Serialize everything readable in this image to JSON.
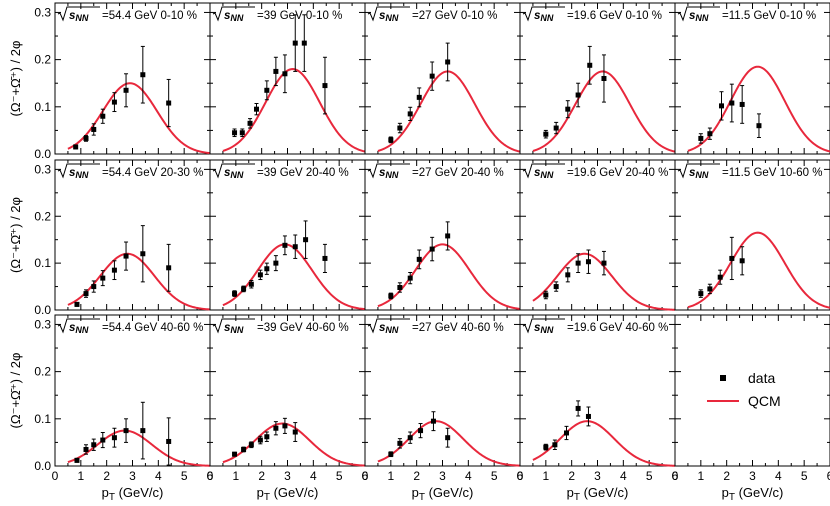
{
  "chart_data": {
    "type": "scatter",
    "title": "",
    "xlabel": "p_T (GeV/c)",
    "xlim": [
      0,
      6
    ],
    "x_ticks": [
      "0",
      "1",
      "2",
      "3",
      "4",
      "5",
      "6"
    ],
    "y_ticks": [
      "0.0",
      "0.1",
      "0.2",
      "0.3"
    ],
    "ylim": [
      0,
      0.32
    ],
    "row_ylabels": [
      "(Ω⁻+Ω̄⁺) / 2φ",
      "(Ω⁻+Ω̄⁺) / 2φ",
      "(Ω⁻+Ω̄⁺) / 2φ"
    ],
    "legend": {
      "position": "bottom-right",
      "entries": [
        "data",
        "QCM"
      ]
    },
    "qcm_color": "#e8283c",
    "data_color": "#000000",
    "panels": [
      {
        "energy": "54.4 GeV",
        "centrality": "0-10 %",
        "qcm_peak": 0.15,
        "qcm_mu": 2.9,
        "data": [
          [
            0.8,
            0.015,
            0.004
          ],
          [
            1.2,
            0.033,
            0.006
          ],
          [
            1.5,
            0.052,
            0.012
          ],
          [
            1.85,
            0.08,
            0.015
          ],
          [
            2.3,
            0.11,
            0.02
          ],
          [
            2.75,
            0.135,
            0.035
          ],
          [
            3.4,
            0.168,
            0.06
          ],
          [
            4.4,
            0.108,
            0.05
          ]
        ]
      },
      {
        "energy": "39 GeV",
        "centrality": "0-10 %",
        "qcm_peak": 0.18,
        "qcm_mu": 3.2,
        "data": [
          [
            0.95,
            0.045,
            0.008
          ],
          [
            1.25,
            0.045,
            0.008
          ],
          [
            1.55,
            0.065,
            0.01
          ],
          [
            1.8,
            0.095,
            0.012
          ],
          [
            2.2,
            0.135,
            0.02
          ],
          [
            2.55,
            0.175,
            0.03
          ],
          [
            2.9,
            0.17,
            0.04
          ],
          [
            3.3,
            0.235,
            0.06
          ],
          [
            3.65,
            0.235,
            0.06
          ],
          [
            4.45,
            0.145,
            0.06
          ]
        ]
      },
      {
        "energy": "27 GeV",
        "centrality": "0-10 %",
        "qcm_peak": 0.175,
        "qcm_mu": 3.2,
        "data": [
          [
            1.0,
            0.03,
            0.006
          ],
          [
            1.35,
            0.055,
            0.01
          ],
          [
            1.75,
            0.085,
            0.014
          ],
          [
            2.1,
            0.12,
            0.02
          ],
          [
            2.6,
            0.165,
            0.03
          ],
          [
            3.2,
            0.195,
            0.04
          ]
        ]
      },
      {
        "energy": "19.6 GeV",
        "centrality": "0-10 %",
        "qcm_peak": 0.175,
        "qcm_mu": 3.2,
        "data": [
          [
            1.0,
            0.042,
            0.008
          ],
          [
            1.4,
            0.055,
            0.012
          ],
          [
            1.85,
            0.095,
            0.018
          ],
          [
            2.25,
            0.125,
            0.025
          ],
          [
            2.7,
            0.188,
            0.04
          ],
          [
            3.25,
            0.16,
            0.05
          ]
        ]
      },
      {
        "energy": "11.5 GeV",
        "centrality": "0-10 %",
        "qcm_peak": 0.185,
        "qcm_mu": 3.2,
        "data": [
          [
            1.0,
            0.033,
            0.01
          ],
          [
            1.35,
            0.043,
            0.012
          ],
          [
            1.8,
            0.102,
            0.03
          ],
          [
            2.2,
            0.108,
            0.04
          ],
          [
            2.6,
            0.105,
            0.04
          ],
          [
            3.25,
            0.06,
            0.025
          ]
        ]
      },
      {
        "energy": "54.4 GeV",
        "centrality": "20-30 %",
        "qcm_peak": 0.12,
        "qcm_mu": 2.8,
        "data": [
          [
            0.85,
            0.012,
            0.004
          ],
          [
            1.2,
            0.035,
            0.008
          ],
          [
            1.5,
            0.05,
            0.012
          ],
          [
            1.85,
            0.068,
            0.016
          ],
          [
            2.3,
            0.085,
            0.02
          ],
          [
            2.75,
            0.115,
            0.03
          ],
          [
            3.4,
            0.12,
            0.06
          ],
          [
            4.4,
            0.09,
            0.05
          ]
        ]
      },
      {
        "energy": "39 GeV",
        "centrality": "20-40 %",
        "qcm_peak": 0.14,
        "qcm_mu": 2.9,
        "data": [
          [
            0.95,
            0.035,
            0.006
          ],
          [
            1.3,
            0.045,
            0.006
          ],
          [
            1.6,
            0.055,
            0.008
          ],
          [
            1.95,
            0.075,
            0.01
          ],
          [
            2.2,
            0.088,
            0.012
          ],
          [
            2.55,
            0.1,
            0.016
          ],
          [
            2.9,
            0.138,
            0.02
          ],
          [
            3.3,
            0.135,
            0.025
          ],
          [
            3.7,
            0.15,
            0.04
          ],
          [
            4.45,
            0.11,
            0.03
          ]
        ]
      },
      {
        "energy": "27 GeV",
        "centrality": "20-40 %",
        "qcm_peak": 0.14,
        "qcm_mu": 3.0,
        "data": [
          [
            1.0,
            0.03,
            0.006
          ],
          [
            1.35,
            0.048,
            0.01
          ],
          [
            1.75,
            0.068,
            0.012
          ],
          [
            2.1,
            0.108,
            0.02
          ],
          [
            2.6,
            0.13,
            0.025
          ],
          [
            3.2,
            0.158,
            0.03
          ]
        ]
      },
      {
        "energy": "19.6 GeV",
        "centrality": "20-40 %",
        "qcm_peak": 0.12,
        "qcm_mu": 2.5,
        "data": [
          [
            1.0,
            0.032,
            0.008
          ],
          [
            1.4,
            0.05,
            0.01
          ],
          [
            1.85,
            0.075,
            0.015
          ],
          [
            2.25,
            0.1,
            0.02
          ],
          [
            2.65,
            0.103,
            0.025
          ],
          [
            3.25,
            0.1,
            0.025
          ]
        ]
      },
      {
        "energy": "11.5 GeV",
        "centrality": "10-60 %",
        "qcm_peak": 0.165,
        "qcm_mu": 3.2,
        "data": [
          [
            1.0,
            0.035,
            0.008
          ],
          [
            1.35,
            0.045,
            0.01
          ],
          [
            1.75,
            0.07,
            0.015
          ],
          [
            2.2,
            0.11,
            0.045
          ],
          [
            2.6,
            0.105,
            0.03
          ]
        ]
      },
      {
        "energy": "54.4 GeV",
        "centrality": "40-60 %",
        "qcm_peak": 0.075,
        "qcm_mu": 2.7,
        "data": [
          [
            0.85,
            0.012,
            0.004
          ],
          [
            1.2,
            0.035,
            0.01
          ],
          [
            1.5,
            0.045,
            0.012
          ],
          [
            1.85,
            0.055,
            0.016
          ],
          [
            2.3,
            0.06,
            0.02
          ],
          [
            2.75,
            0.075,
            0.025
          ],
          [
            3.4,
            0.075,
            0.06
          ],
          [
            4.4,
            0.052,
            0.05
          ]
        ]
      },
      {
        "energy": "39 GeV",
        "centrality": "40-60 %",
        "qcm_peak": 0.09,
        "qcm_mu": 2.8,
        "data": [
          [
            0.95,
            0.025,
            0.004
          ],
          [
            1.3,
            0.035,
            0.005
          ],
          [
            1.6,
            0.045,
            0.006
          ],
          [
            1.95,
            0.055,
            0.008
          ],
          [
            2.2,
            0.062,
            0.01
          ],
          [
            2.55,
            0.08,
            0.014
          ],
          [
            2.9,
            0.085,
            0.016
          ],
          [
            3.3,
            0.072,
            0.02
          ]
        ]
      },
      {
        "energy": "27 GeV",
        "centrality": "40-60 %",
        "qcm_peak": 0.095,
        "qcm_mu": 2.75,
        "data": [
          [
            1.0,
            0.025,
            0.005
          ],
          [
            1.35,
            0.048,
            0.01
          ],
          [
            1.75,
            0.06,
            0.012
          ],
          [
            2.15,
            0.075,
            0.015
          ],
          [
            2.65,
            0.095,
            0.02
          ],
          [
            3.2,
            0.06,
            0.02
          ]
        ]
      },
      {
        "energy": "19.6 GeV",
        "centrality": "40-60 %",
        "qcm_peak": 0.095,
        "qcm_mu": 2.6,
        "data": [
          [
            1.0,
            0.04,
            0.006
          ],
          [
            1.35,
            0.045,
            0.01
          ],
          [
            1.8,
            0.07,
            0.014
          ],
          [
            2.25,
            0.122,
            0.016
          ],
          [
            2.65,
            0.105,
            0.02
          ]
        ]
      },
      {
        "legend_only": true
      }
    ]
  }
}
